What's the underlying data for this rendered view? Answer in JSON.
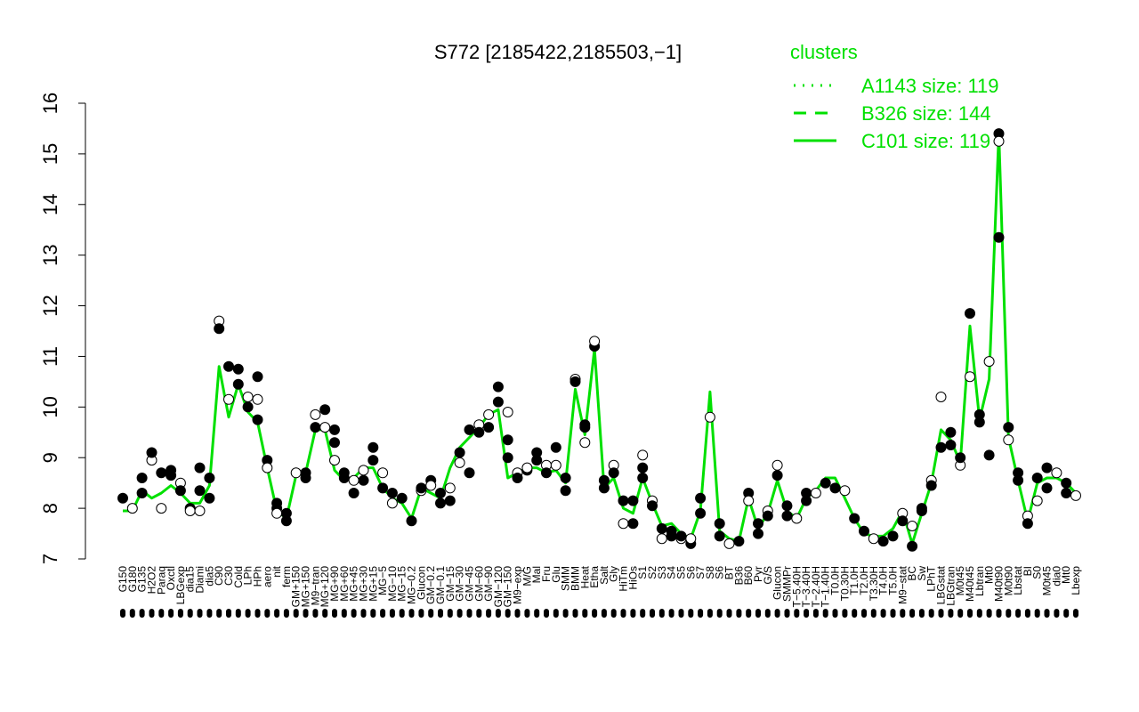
{
  "chart_data": {
    "type": "line",
    "title": "S772 [2185422,2185503,−1]",
    "ylim": [
      7,
      16
    ],
    "yticks": [
      7,
      8,
      9,
      10,
      11,
      12,
      13,
      14,
      15,
      16
    ],
    "line_color": "#00e000",
    "point_fill": "#000000",
    "legend": {
      "title": "clusters",
      "placement": "top-right",
      "entries": [
        {
          "label": "A1143 size: 119",
          "style": "dotted"
        },
        {
          "label": "B326 size: 144",
          "style": "dashed"
        },
        {
          "label": "C101 size: 119",
          "style": "solid"
        }
      ]
    },
    "x_labels": [
      "G150",
      "G180",
      "G135",
      "H2O2",
      "Paraq",
      "Oxctl",
      "LBGexp",
      "dia15",
      "Diami",
      "dia5",
      "C90",
      "C30",
      "Cold",
      "LPh",
      "HPh",
      "aero",
      "nit",
      "ferm",
      "GM+150",
      "MG+150",
      "M9−tran",
      "MG+120",
      "MG+90",
      "MG+60",
      "MG+45",
      "MG+30",
      "MG+15",
      "MG−5",
      "MG−10",
      "MG−15",
      "MG−0.2",
      "Glucon",
      "GM−0.2",
      "GM−0.1",
      "GM−15",
      "GM−30",
      "GM−45",
      "GM−60",
      "GM−90",
      "GM−120",
      "GM−150",
      "M9−exp",
      "M/G",
      "Mal",
      "Fru",
      "Glu",
      "SMM",
      "BMM",
      "Heat",
      "Etha",
      "Salt",
      "Gly",
      "HiTm",
      "HiOs",
      "S1",
      "S2",
      "S3",
      "S4",
      "S5",
      "S6",
      "S7",
      "S8",
      "S6",
      "BT",
      "B36",
      "B60",
      "Pyr",
      "G/S",
      "Glucon",
      "SMMPr",
      "T−5.40H",
      "T−3.40H",
      "T−2.40H",
      "T−1.40H",
      "T0.0H",
      "T0.30H",
      "T1.0H",
      "T2.0H",
      "T3.30H",
      "T4.0H",
      "T5.0H",
      "M9−stat",
      "BC",
      "Sw",
      "LPhT",
      "LBGstat",
      "LBGtran",
      "M0t45",
      "M40t45",
      "Lbtran",
      "Mt0",
      "M40t90",
      "M0t90",
      "Lbstat",
      "BI",
      "S0",
      "M0t45",
      "dia0",
      "Mt0",
      "Lbexp"
    ],
    "y_min_line": [
      7.95,
      7.95,
      8.35,
      8.2,
      8.3,
      8.45,
      8.3,
      8.1,
      8.1,
      8.45,
      10.8,
      9.8,
      10.45,
      9.9,
      9.7,
      8.8,
      7.95,
      7.8,
      8.65,
      8.7,
      9.55,
      9.55,
      8.75,
      8.55,
      8.6,
      8.8,
      8.8,
      8.4,
      8.2,
      8.1,
      7.8,
      8.4,
      8.3,
      8.2,
      8.8,
      9.2,
      9.4,
      9.6,
      9.85,
      9.95,
      8.6,
      8.7,
      8.8,
      8.8,
      8.7,
      8.75,
      8.5,
      10.35,
      9.45,
      11.15,
      8.4,
      8.6,
      8.0,
      7.9,
      8.6,
      8.1,
      7.65,
      7.7,
      7.5,
      7.4,
      7.95,
      10.3,
      7.55,
      7.4,
      7.35,
      8.2,
      7.6,
      7.9,
      8.55,
      7.95,
      7.8,
      8.2,
      8.35,
      8.6,
      8.6,
      8.2,
      7.8,
      7.5,
      7.45,
      7.45,
      7.6,
      7.95,
      7.3,
      7.9,
      8.5,
      9.55,
      9.35,
      8.9,
      11.6,
      9.75,
      10.55,
      15.4,
      9.4,
      8.55,
      7.75,
      8.5,
      8.6,
      8.6,
      8.5,
      8.3
    ],
    "points": [
      {
        "x": 0,
        "y": 8.2
      },
      {
        "x": 1,
        "y": 8.0
      },
      {
        "x": 2,
        "y": 8.6
      },
      {
        "x": 2,
        "y": 8.3
      },
      {
        "x": 3,
        "y": 8.95
      },
      {
        "x": 3,
        "y": 9.1
      },
      {
        "x": 4,
        "y": 8.7
      },
      {
        "x": 4,
        "y": 8.0
      },
      {
        "x": 5,
        "y": 8.75
      },
      {
        "x": 5,
        "y": 8.65
      },
      {
        "x": 6,
        "y": 8.5
      },
      {
        "x": 6,
        "y": 8.35
      },
      {
        "x": 7,
        "y": 8.0
      },
      {
        "x": 7,
        "y": 7.95
      },
      {
        "x": 8,
        "y": 8.8
      },
      {
        "x": 8,
        "y": 8.35
      },
      {
        "x": 8,
        "y": 7.95
      },
      {
        "x": 9,
        "y": 8.6
      },
      {
        "x": 9,
        "y": 8.2
      },
      {
        "x": 10,
        "y": 11.7
      },
      {
        "x": 10,
        "y": 11.55
      },
      {
        "x": 11,
        "y": 10.8
      },
      {
        "x": 11,
        "y": 10.15
      },
      {
        "x": 12,
        "y": 10.75
      },
      {
        "x": 12,
        "y": 10.45
      },
      {
        "x": 13,
        "y": 10.2
      },
      {
        "x": 13,
        "y": 10.0
      },
      {
        "x": 14,
        "y": 10.6
      },
      {
        "x": 14,
        "y": 10.15
      },
      {
        "x": 14,
        "y": 9.75
      },
      {
        "x": 15,
        "y": 8.95
      },
      {
        "x": 15,
        "y": 8.8
      },
      {
        "x": 16,
        "y": 8.1
      },
      {
        "x": 16,
        "y": 8.0
      },
      {
        "x": 16,
        "y": 7.9
      },
      {
        "x": 17,
        "y": 7.9
      },
      {
        "x": 17,
        "y": 7.75
      },
      {
        "x": 18,
        "y": 8.7
      },
      {
        "x": 19,
        "y": 8.7
      },
      {
        "x": 19,
        "y": 8.6
      },
      {
        "x": 20,
        "y": 9.85
      },
      {
        "x": 20,
        "y": 9.6
      },
      {
        "x": 21,
        "y": 9.95
      },
      {
        "x": 21,
        "y": 9.6
      },
      {
        "x": 22,
        "y": 9.55
      },
      {
        "x": 22,
        "y": 9.3
      },
      {
        "x": 22,
        "y": 8.95
      },
      {
        "x": 23,
        "y": 8.7
      },
      {
        "x": 23,
        "y": 8.6
      },
      {
        "x": 24,
        "y": 8.55
      },
      {
        "x": 24,
        "y": 8.3
      },
      {
        "x": 25,
        "y": 8.55
      },
      {
        "x": 25,
        "y": 8.75
      },
      {
        "x": 26,
        "y": 9.2
      },
      {
        "x": 26,
        "y": 8.95
      },
      {
        "x": 27,
        "y": 8.7
      },
      {
        "x": 27,
        "y": 8.4
      },
      {
        "x": 28,
        "y": 8.3
      },
      {
        "x": 28,
        "y": 8.1
      },
      {
        "x": 29,
        "y": 8.2
      },
      {
        "x": 30,
        "y": 7.75
      },
      {
        "x": 31,
        "y": 8.35
      },
      {
        "x": 31,
        "y": 8.4
      },
      {
        "x": 32,
        "y": 8.55
      },
      {
        "x": 32,
        "y": 8.45
      },
      {
        "x": 33,
        "y": 8.3
      },
      {
        "x": 33,
        "y": 8.1
      },
      {
        "x": 34,
        "y": 8.4
      },
      {
        "x": 34,
        "y": 8.15
      },
      {
        "x": 35,
        "y": 9.1
      },
      {
        "x": 35,
        "y": 8.9
      },
      {
        "x": 36,
        "y": 9.55
      },
      {
        "x": 36,
        "y": 8.7
      },
      {
        "x": 37,
        "y": 9.65
      },
      {
        "x": 37,
        "y": 9.5
      },
      {
        "x": 38,
        "y": 9.6
      },
      {
        "x": 38,
        "y": 9.85
      },
      {
        "x": 39,
        "y": 10.4
      },
      {
        "x": 39,
        "y": 10.1
      },
      {
        "x": 40,
        "y": 9.9
      },
      {
        "x": 40,
        "y": 9.35
      },
      {
        "x": 40,
        "y": 9.0
      },
      {
        "x": 41,
        "y": 8.7
      },
      {
        "x": 41,
        "y": 8.6
      },
      {
        "x": 42,
        "y": 8.75
      },
      {
        "x": 42,
        "y": 8.8
      },
      {
        "x": 43,
        "y": 9.1
      },
      {
        "x": 43,
        "y": 8.95
      },
      {
        "x": 44,
        "y": 8.85
      },
      {
        "x": 44,
        "y": 8.7
      },
      {
        "x": 45,
        "y": 9.2
      },
      {
        "x": 45,
        "y": 8.85
      },
      {
        "x": 46,
        "y": 8.6
      },
      {
        "x": 46,
        "y": 8.35
      },
      {
        "x": 47,
        "y": 10.55
      },
      {
        "x": 47,
        "y": 10.5
      },
      {
        "x": 48,
        "y": 9.6
      },
      {
        "x": 48,
        "y": 9.3
      },
      {
        "x": 48,
        "y": 9.65
      },
      {
        "x": 49,
        "y": 11.2
      },
      {
        "x": 49,
        "y": 11.3
      },
      {
        "x": 50,
        "y": 8.55
      },
      {
        "x": 50,
        "y": 8.4
      },
      {
        "x": 51,
        "y": 8.85
      },
      {
        "x": 51,
        "y": 8.7
      },
      {
        "x": 52,
        "y": 8.15
      },
      {
        "x": 52,
        "y": 7.7
      },
      {
        "x": 53,
        "y": 8.15
      },
      {
        "x": 53,
        "y": 7.7
      },
      {
        "x": 54,
        "y": 9.05
      },
      {
        "x": 54,
        "y": 8.8
      },
      {
        "x": 54,
        "y": 8.6
      },
      {
        "x": 55,
        "y": 8.15
      },
      {
        "x": 55,
        "y": 8.05
      },
      {
        "x": 56,
        "y": 7.6
      },
      {
        "x": 56,
        "y": 7.4
      },
      {
        "x": 57,
        "y": 7.55
      },
      {
        "x": 57,
        "y": 7.45
      },
      {
        "x": 58,
        "y": 7.4
      },
      {
        "x": 58,
        "y": 7.45
      },
      {
        "x": 59,
        "y": 7.3
      },
      {
        "x": 59,
        "y": 7.4
      },
      {
        "x": 60,
        "y": 8.2
      },
      {
        "x": 60,
        "y": 7.9
      },
      {
        "x": 61,
        "y": 9.8
      },
      {
        "x": 62,
        "y": 7.7
      },
      {
        "x": 62,
        "y": 7.45
      },
      {
        "x": 63,
        "y": 7.3
      },
      {
        "x": 64,
        "y": 7.35
      },
      {
        "x": 65,
        "y": 8.3
      },
      {
        "x": 65,
        "y": 8.15
      },
      {
        "x": 66,
        "y": 7.7
      },
      {
        "x": 66,
        "y": 7.5
      },
      {
        "x": 67,
        "y": 7.95
      },
      {
        "x": 67,
        "y": 7.85
      },
      {
        "x": 68,
        "y": 8.65
      },
      {
        "x": 68,
        "y": 8.85
      },
      {
        "x": 69,
        "y": 8.05
      },
      {
        "x": 69,
        "y": 7.85
      },
      {
        "x": 70,
        "y": 7.8
      },
      {
        "x": 71,
        "y": 8.3
      },
      {
        "x": 71,
        "y": 8.15
      },
      {
        "x": 72,
        "y": 8.3
      },
      {
        "x": 73,
        "y": 8.5
      },
      {
        "x": 74,
        "y": 8.4
      },
      {
        "x": 75,
        "y": 8.35
      },
      {
        "x": 76,
        "y": 7.8
      },
      {
        "x": 77,
        "y": 7.55
      },
      {
        "x": 78,
        "y": 7.4
      },
      {
        "x": 79,
        "y": 7.35
      },
      {
        "x": 80,
        "y": 7.45
      },
      {
        "x": 81,
        "y": 7.9
      },
      {
        "x": 81,
        "y": 7.75
      },
      {
        "x": 82,
        "y": 7.25
      },
      {
        "x": 82,
        "y": 7.65
      },
      {
        "x": 83,
        "y": 7.95
      },
      {
        "x": 83,
        "y": 8.0
      },
      {
        "x": 84,
        "y": 8.55
      },
      {
        "x": 84,
        "y": 8.45
      },
      {
        "x": 85,
        "y": 9.2
      },
      {
        "x": 85,
        "y": 10.2
      },
      {
        "x": 86,
        "y": 9.5
      },
      {
        "x": 86,
        "y": 9.25
      },
      {
        "x": 87,
        "y": 8.85
      },
      {
        "x": 87,
        "y": 9.0
      },
      {
        "x": 88,
        "y": 11.85
      },
      {
        "x": 88,
        "y": 10.6
      },
      {
        "x": 89,
        "y": 9.85
      },
      {
        "x": 89,
        "y": 9.7
      },
      {
        "x": 90,
        "y": 10.9
      },
      {
        "x": 90,
        "y": 9.05
      },
      {
        "x": 91,
        "y": 15.4
      },
      {
        "x": 91,
        "y": 15.25
      },
      {
        "x": 91,
        "y": 13.35
      },
      {
        "x": 92,
        "y": 9.6
      },
      {
        "x": 92,
        "y": 9.35
      },
      {
        "x": 93,
        "y": 8.7
      },
      {
        "x": 93,
        "y": 8.55
      },
      {
        "x": 94,
        "y": 7.85
      },
      {
        "x": 94,
        "y": 7.7
      },
      {
        "x": 95,
        "y": 8.6
      },
      {
        "x": 95,
        "y": 8.15
      },
      {
        "x": 96,
        "y": 8.8
      },
      {
        "x": 96,
        "y": 8.4
      },
      {
        "x": 97,
        "y": 8.7
      },
      {
        "x": 98,
        "y": 8.5
      },
      {
        "x": 98,
        "y": 8.3
      },
      {
        "x": 99,
        "y": 8.25
      }
    ]
  }
}
